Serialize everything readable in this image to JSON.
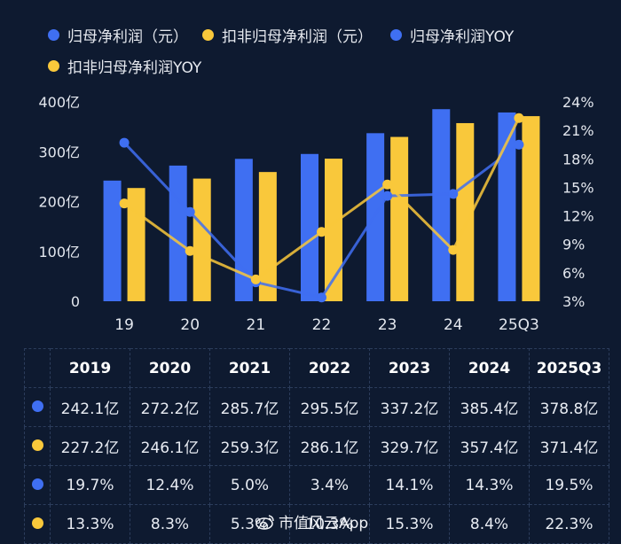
{
  "colors": {
    "blue": "#3f6ff2",
    "yellow": "#f9c83b",
    "background": "#0e1a30"
  },
  "legend": [
    {
      "label": "归母净利润（元）",
      "color": "#3f6ff2"
    },
    {
      "label": "扣非归母净利润（元）",
      "color": "#f9c83b"
    },
    {
      "label": "归母净利润YOY",
      "color": "#3f6ff2"
    },
    {
      "label": "扣非归母净利润YOY",
      "color": "#f9c83b"
    }
  ],
  "chart_data": {
    "type": "bar+line",
    "categories": [
      "19",
      "20",
      "21",
      "22",
      "23",
      "24",
      "25Q3"
    ],
    "left_axis": {
      "ticks": [
        "0",
        "100亿",
        "200亿",
        "300亿",
        "400亿"
      ],
      "range": [
        0,
        400
      ]
    },
    "right_axis": {
      "ticks": [
        "3%",
        "6%",
        "9%",
        "12%",
        "15%",
        "18%",
        "21%",
        "24%"
      ],
      "range": [
        3,
        24
      ]
    },
    "bars": [
      {
        "name": "归母净利润（元）",
        "color": "#3f6ff2",
        "values": [
          242.1,
          272.2,
          285.7,
          295.5,
          337.2,
          385.4,
          378.8
        ]
      },
      {
        "name": "扣非归母净利润（元）",
        "color": "#f9c83b",
        "values": [
          227.2,
          246.1,
          259.3,
          286.1,
          329.7,
          357.4,
          371.4
        ]
      }
    ],
    "lines": [
      {
        "name": "归母净利润YOY",
        "color": "#3f6ff2",
        "values": [
          19.7,
          12.4,
          5.0,
          3.4,
          14.1,
          14.3,
          19.5
        ]
      },
      {
        "name": "扣非归母净利润YOY",
        "color": "#f9c83b",
        "values": [
          13.3,
          8.3,
          5.3,
          10.3,
          15.3,
          8.4,
          22.3
        ]
      }
    ],
    "grid": false,
    "legend_position": "top-left"
  },
  "table": {
    "headers": [
      "2019",
      "2020",
      "2021",
      "2022",
      "2023",
      "2024",
      "2025Q3"
    ],
    "rows": [
      {
        "color": "#3f6ff2",
        "values": [
          "242.1亿",
          "272.2亿",
          "285.7亿",
          "295.5亿",
          "337.2亿",
          "385.4亿",
          "378.8亿"
        ]
      },
      {
        "color": "#f9c83b",
        "values": [
          "227.2亿",
          "246.1亿",
          "259.3亿",
          "286.1亿",
          "329.7亿",
          "357.4亿",
          "371.4亿"
        ]
      },
      {
        "color": "#3f6ff2",
        "values": [
          "19.7%",
          "12.4%",
          "5.0%",
          "3.4%",
          "14.1%",
          "14.3%",
          "19.5%"
        ]
      },
      {
        "color": "#f9c83b",
        "values": [
          "13.3%",
          "8.3%",
          "5.3%",
          "10.3%",
          "15.3%",
          "8.4%",
          "22.3%"
        ]
      }
    ]
  },
  "watermark": {
    "text": "市值风云App"
  }
}
